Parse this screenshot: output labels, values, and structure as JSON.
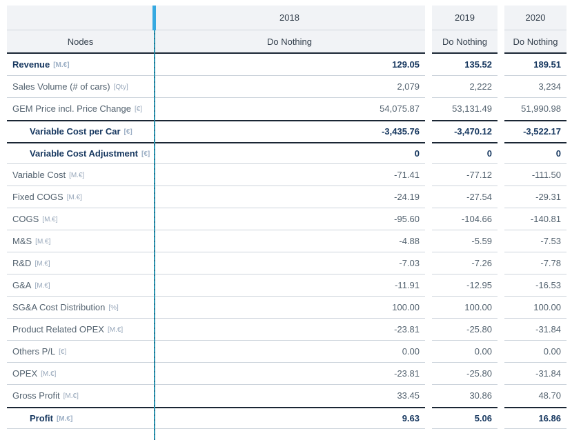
{
  "table": {
    "nodes_header": "Nodes",
    "columns": [
      {
        "year": "2018",
        "scenario": "Do Nothing"
      },
      {
        "year": "2019",
        "scenario": "Do Nothing"
      },
      {
        "year": "2020",
        "scenario": "Do Nothing"
      }
    ],
    "rows": [
      {
        "label": "Revenue",
        "unit": "[M.€]",
        "bold": true,
        "indent": false,
        "dark_top": false,
        "values": [
          "129.05",
          "135.52",
          "189.51"
        ]
      },
      {
        "label": "Sales Volume (# of cars)",
        "unit": "[Qty]",
        "bold": false,
        "indent": false,
        "dark_top": false,
        "values": [
          "2,079",
          "2,222",
          "3,234"
        ]
      },
      {
        "label": "GEM Price incl. Price Change",
        "unit": "[€]",
        "bold": false,
        "indent": false,
        "dark_top": false,
        "values": [
          "54,075.87",
          "53,131.49",
          "51,990.98"
        ]
      },
      {
        "label": "Variable Cost per Car",
        "unit": "[€]",
        "bold": true,
        "indent": true,
        "dark_top": true,
        "values": [
          "-3,435.76",
          "-3,470.12",
          "-3,522.17"
        ]
      },
      {
        "label": "Variable Cost Adjustment",
        "unit": "[€]",
        "bold": true,
        "indent": true,
        "dark_top": true,
        "values": [
          "0",
          "0",
          "0"
        ]
      },
      {
        "label": "Variable Cost",
        "unit": "[M.€]",
        "bold": false,
        "indent": false,
        "dark_top": false,
        "values": [
          "-71.41",
          "-77.12",
          "-111.50"
        ]
      },
      {
        "label": "Fixed COGS",
        "unit": "[M.€]",
        "bold": false,
        "indent": false,
        "dark_top": false,
        "values": [
          "-24.19",
          "-27.54",
          "-29.31"
        ]
      },
      {
        "label": "COGS",
        "unit": "[M.€]",
        "bold": false,
        "indent": false,
        "dark_top": false,
        "values": [
          "-95.60",
          "-104.66",
          "-140.81"
        ]
      },
      {
        "label": "M&S",
        "unit": "[M.€]",
        "bold": false,
        "indent": false,
        "dark_top": false,
        "values": [
          "-4.88",
          "-5.59",
          "-7.53"
        ]
      },
      {
        "label": "R&D",
        "unit": "[M.€]",
        "bold": false,
        "indent": false,
        "dark_top": false,
        "values": [
          "-7.03",
          "-7.26",
          "-7.78"
        ]
      },
      {
        "label": "G&A",
        "unit": "[M.€]",
        "bold": false,
        "indent": false,
        "dark_top": false,
        "values": [
          "-11.91",
          "-12.95",
          "-16.53"
        ]
      },
      {
        "label": "SG&A Cost Distribution",
        "unit": "[%]",
        "bold": false,
        "indent": false,
        "dark_top": false,
        "values": [
          "100.00",
          "100.00",
          "100.00"
        ]
      },
      {
        "label": "Product Related OPEX",
        "unit": "[M.€]",
        "bold": false,
        "indent": false,
        "dark_top": false,
        "values": [
          "-23.81",
          "-25.80",
          "-31.84"
        ]
      },
      {
        "label": "Others P/L",
        "unit": "[€]",
        "bold": false,
        "indent": false,
        "dark_top": false,
        "values": [
          "0.00",
          "0.00",
          "0.00"
        ]
      },
      {
        "label": "OPEX",
        "unit": "[M.€]",
        "bold": false,
        "indent": false,
        "dark_top": false,
        "values": [
          "-23.81",
          "-25.80",
          "-31.84"
        ]
      },
      {
        "label": "Gross Profit",
        "unit": "[M.€]",
        "bold": false,
        "indent": false,
        "dark_top": false,
        "values": [
          "33.45",
          "30.86",
          "48.70"
        ]
      },
      {
        "label": "Profit",
        "unit": "[M.€]",
        "bold": true,
        "indent": true,
        "dark_top": true,
        "values": [
          "9.63",
          "5.06",
          "16.86"
        ]
      }
    ]
  },
  "colors": {
    "header_bg": "#f1f3f6",
    "dark_border": "#1a2634",
    "light_border": "#ccd3db",
    "header_text": "#333f4c",
    "regular_text": "#53626f",
    "bold_text": "#16375f",
    "unit_text": "#97a7ba",
    "accent_bar": "#36a9e1",
    "divider_line": "#2e98b3"
  }
}
